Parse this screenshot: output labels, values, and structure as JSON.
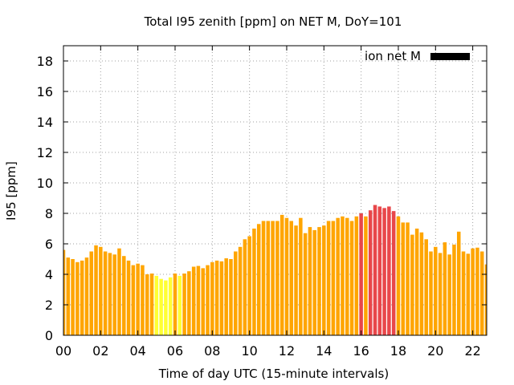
{
  "chart_data": {
    "type": "bar",
    "title": "Total I95 zenith [ppm] on NET M, DoY=101",
    "xlabel": "Time of day UTC (15-minute intervals)",
    "ylabel": "I95 [ppm]",
    "ylim": [
      0,
      19
    ],
    "xlim_hours": [
      0,
      22.75
    ],
    "yticks": [
      0,
      2,
      4,
      6,
      8,
      10,
      12,
      14,
      16,
      18
    ],
    "ytick_labels": [
      "0",
      "2",
      "4",
      "6",
      "8",
      "10",
      "12",
      "14",
      "16",
      "18"
    ],
    "xticks_hours": [
      0,
      2,
      4,
      6,
      8,
      10,
      12,
      14,
      16,
      18,
      20,
      22
    ],
    "xtick_labels": [
      "00",
      "02",
      "04",
      "06",
      "08",
      "10",
      "12",
      "14",
      "16",
      "18",
      "20",
      "22"
    ],
    "grid": true,
    "legend": {
      "label": "ion net M",
      "color": "#000000",
      "placement": "top-right"
    },
    "bar_interval_hours": 0.25,
    "color_thresholds": [
      {
        "max": 4,
        "color": "#ffff33"
      },
      {
        "max": 8,
        "color": "#ffa500"
      },
      {
        "max": 99,
        "color": "#e8474a"
      }
    ],
    "values": [
      5.6,
      5.1,
      5.0,
      4.8,
      4.9,
      5.1,
      5.5,
      5.9,
      5.8,
      5.5,
      5.4,
      5.3,
      5.7,
      5.2,
      4.9,
      4.6,
      4.7,
      4.6,
      4.0,
      4.05,
      3.9,
      3.7,
      3.6,
      3.8,
      4.05,
      3.9,
      4.05,
      4.2,
      4.5,
      4.55,
      4.4,
      4.6,
      4.8,
      4.9,
      4.85,
      5.05,
      5.0,
      5.5,
      5.8,
      6.3,
      6.5,
      7.0,
      7.3,
      7.5,
      7.5,
      7.5,
      7.5,
      7.9,
      7.7,
      7.5,
      7.2,
      7.7,
      6.7,
      7.1,
      6.9,
      7.1,
      7.2,
      7.5,
      7.5,
      7.7,
      7.8,
      7.7,
      7.5,
      7.8,
      8.0,
      7.8,
      8.2,
      8.55,
      8.45,
      8.35,
      8.45,
      8.15,
      7.8,
      7.4,
      7.4,
      6.6,
      7.0,
      6.75,
      6.3,
      5.5,
      5.8,
      5.4,
      6.1,
      5.3,
      5.95,
      6.8,
      5.5,
      5.35,
      5.7,
      5.75,
      5.5,
      4.65
    ]
  }
}
